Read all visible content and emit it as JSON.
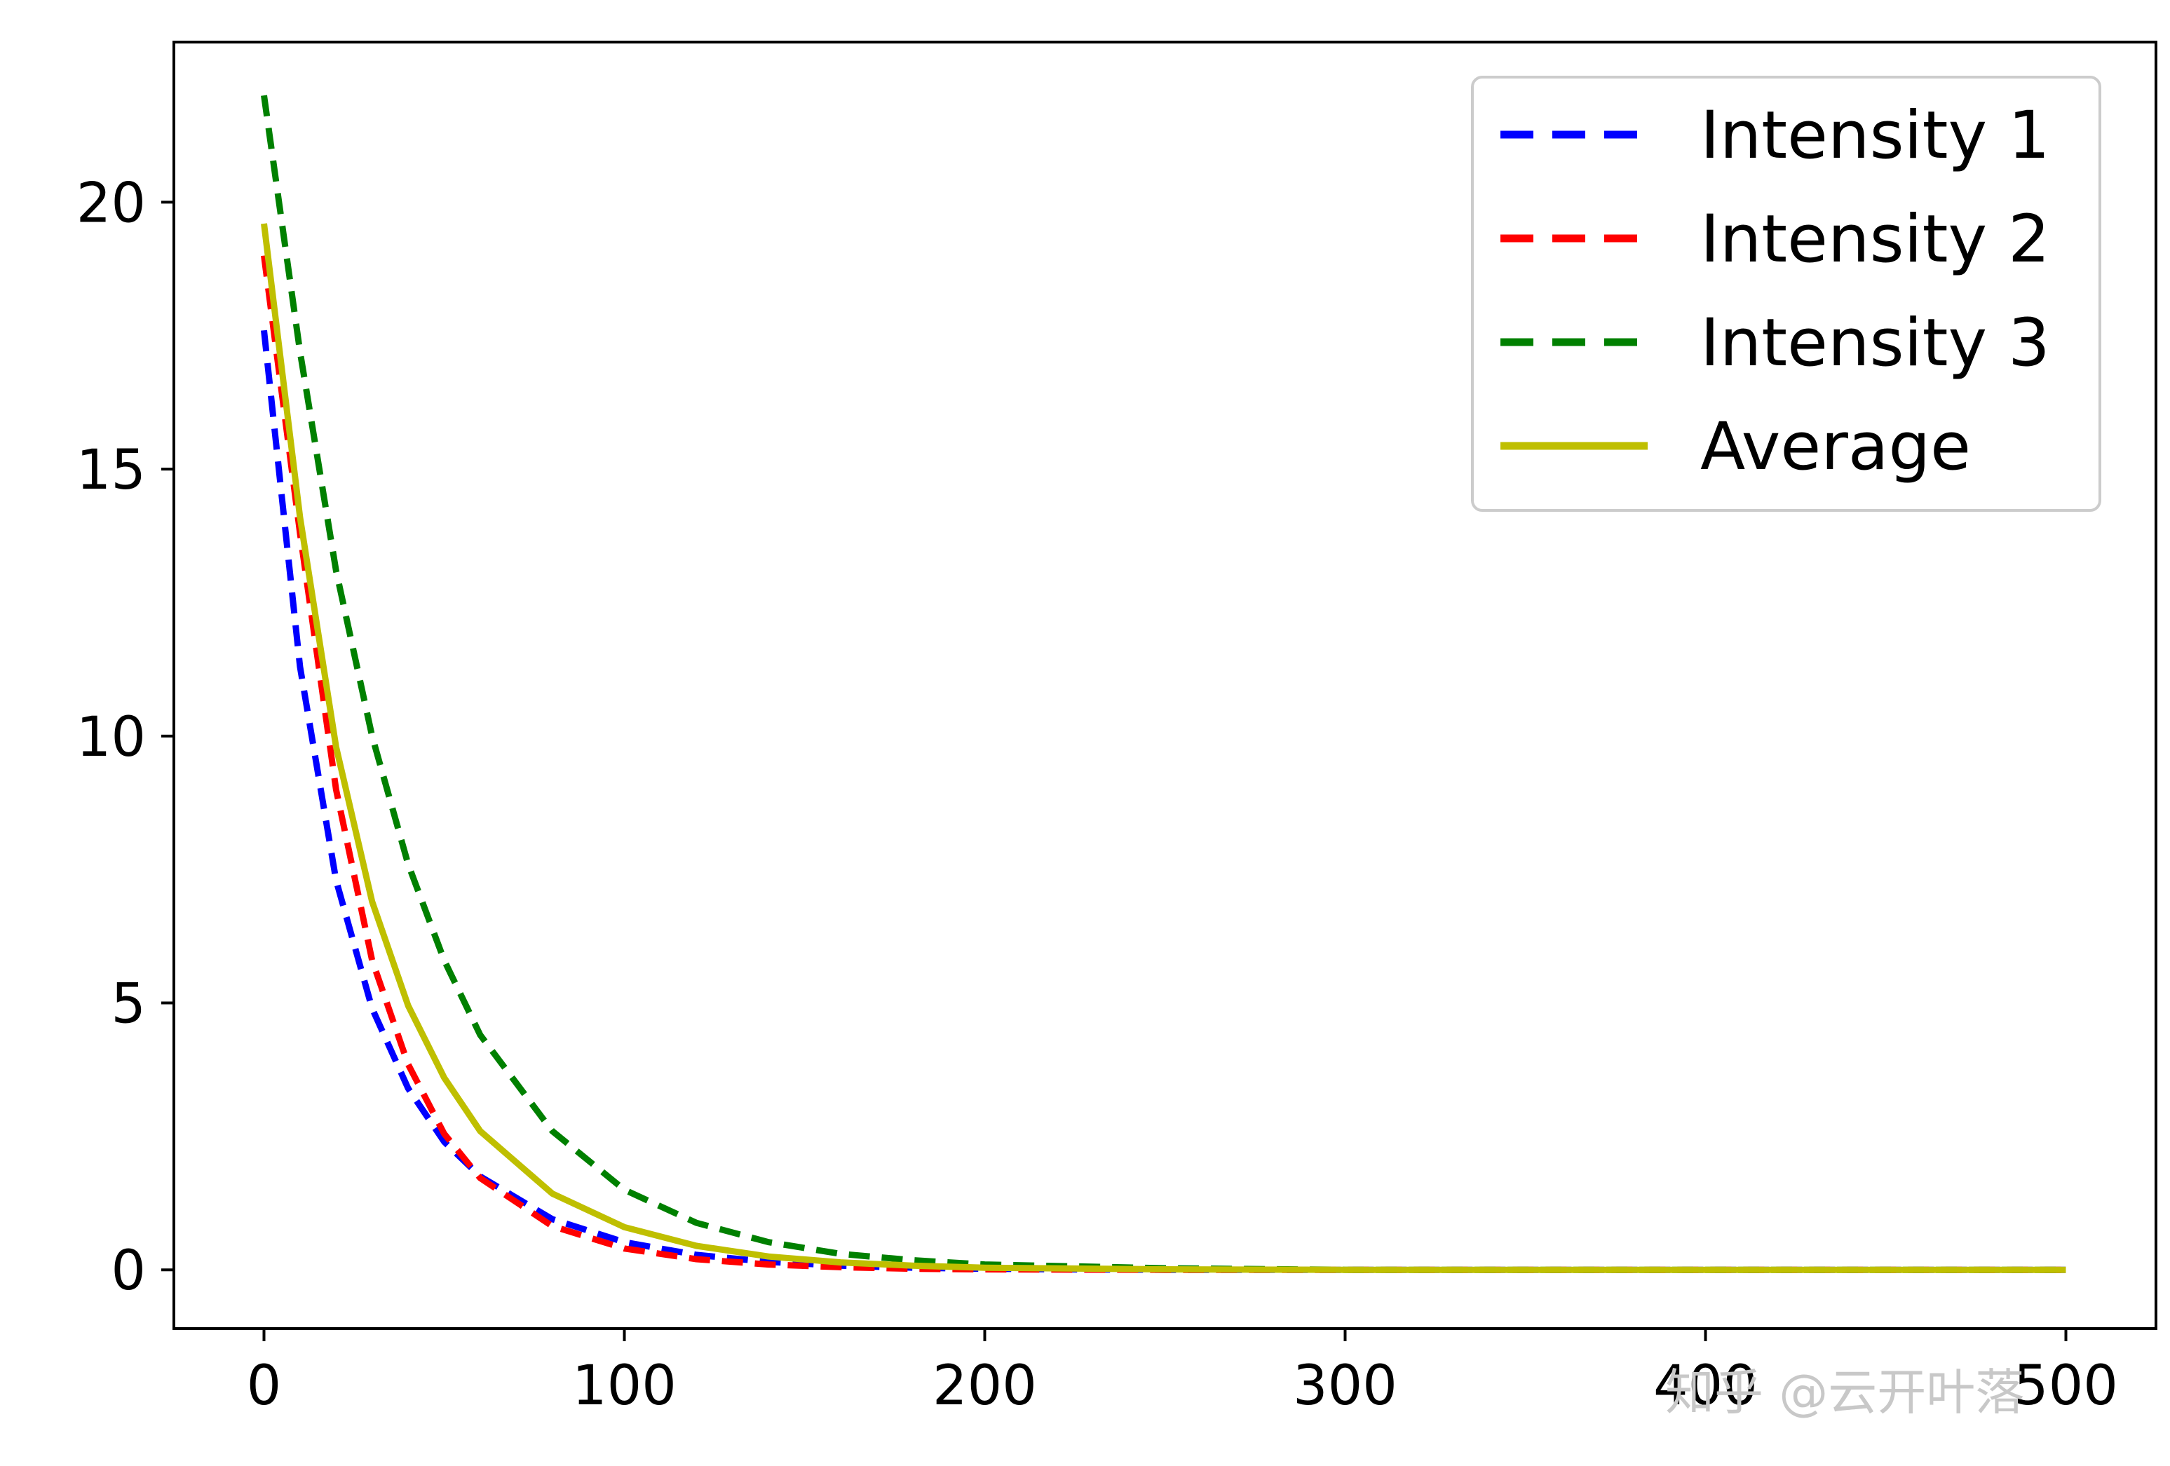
{
  "chart_data": {
    "type": "line",
    "title": "",
    "xlabel": "",
    "ylabel": "",
    "xlim": [
      -25,
      525
    ],
    "ylim": [
      -1.1,
      23
    ],
    "xticks": [
      0,
      100,
      200,
      300,
      400,
      500
    ],
    "yticks": [
      0,
      5,
      10,
      15,
      20
    ],
    "grid": false,
    "legend_position": "upper right",
    "x": [
      0,
      10,
      20,
      30,
      40,
      50,
      60,
      80,
      100,
      120,
      140,
      160,
      180,
      200,
      250,
      300,
      350,
      400,
      450,
      500
    ],
    "series": [
      {
        "name": "Intensity 1",
        "color": "#0000ff",
        "style": "dashed",
        "values": [
          17.6,
          11.3,
          7.3,
          4.9,
          3.4,
          2.4,
          1.75,
          0.95,
          0.52,
          0.28,
          0.15,
          0.08,
          0.04,
          0.02,
          0.0,
          0.0,
          0.0,
          0.0,
          0.0,
          0.0
        ]
      },
      {
        "name": "Intensity 2",
        "color": "#ff0000",
        "style": "dashed",
        "values": [
          19.0,
          13.8,
          9.0,
          5.8,
          3.85,
          2.55,
          1.72,
          0.82,
          0.4,
          0.2,
          0.1,
          0.05,
          0.02,
          0.01,
          0.0,
          0.0,
          0.0,
          0.0,
          0.0,
          0.0
        ]
      },
      {
        "name": "Intensity 3",
        "color": "#008000",
        "style": "dashed",
        "values": [
          22.0,
          17.2,
          13.1,
          10.0,
          7.6,
          5.8,
          4.4,
          2.6,
          1.5,
          0.88,
          0.52,
          0.3,
          0.18,
          0.1,
          0.03,
          0.0,
          0.0,
          0.0,
          0.0,
          0.0
        ]
      },
      {
        "name": "Average",
        "color": "#bfbf00",
        "style": "solid",
        "values": [
          19.6,
          14.1,
          9.8,
          6.9,
          4.95,
          3.6,
          2.6,
          1.43,
          0.8,
          0.45,
          0.25,
          0.14,
          0.08,
          0.04,
          0.01,
          0.0,
          0.0,
          0.0,
          0.0,
          0.0
        ]
      }
    ]
  },
  "watermark": {
    "text": "知乎 @云开叶落"
  }
}
